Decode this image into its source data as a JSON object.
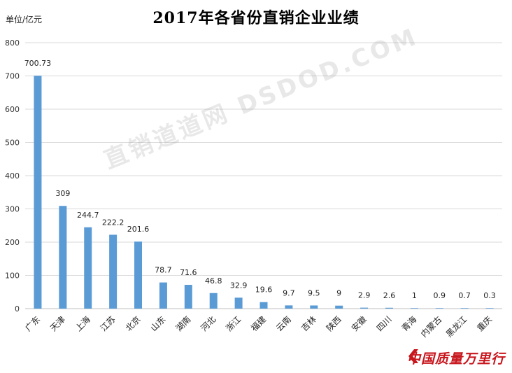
{
  "chart_data": {
    "type": "bar",
    "title": "2017年各省份直销企业业绩",
    "unit_label": "单位/亿元",
    "ylim": [
      0,
      800
    ],
    "yticks": [
      0,
      100,
      200,
      300,
      400,
      500,
      600,
      700,
      800
    ],
    "grid": true,
    "bar_color": "#5b9bd5",
    "categories": [
      "广东",
      "天津",
      "上海",
      "江苏",
      "北京",
      "山东",
      "湖南",
      "河北",
      "浙江",
      "福建",
      "云南",
      "吉林",
      "陕西",
      "安徽",
      "四川",
      "青海",
      "内蒙古",
      "黑龙江",
      "重庆"
    ],
    "values": [
      700.73,
      309,
      244.7,
      222.2,
      201.6,
      78.7,
      71.6,
      46.8,
      32.9,
      19.6,
      9.7,
      9.5,
      9,
      2.9,
      2.6,
      1,
      0.9,
      0.7,
      0.3
    ],
    "value_labels": [
      "700.73",
      "309",
      "244.7",
      "222.2",
      "201.6",
      "78.7",
      "71.6",
      "46.8",
      "32.9",
      "19.6",
      "9.7",
      "9.5",
      "9",
      "2.9",
      "2.6",
      "1",
      "0.9",
      "0.7",
      "0.3"
    ]
  },
  "watermark": "直销道道网 DSDOD.COM",
  "logo": {
    "text": "中国质量万里行",
    "color": "#c8161d"
  }
}
